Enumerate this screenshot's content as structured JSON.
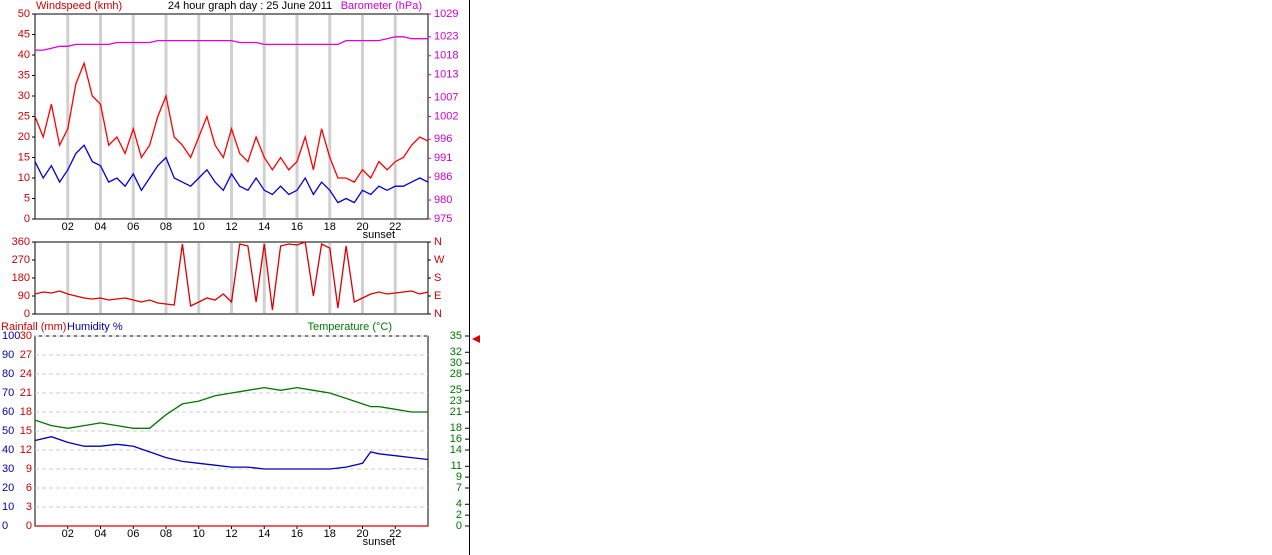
{
  "chart_data": [
    {
      "type": "line",
      "title": "24 hour graph day : 25 June 2011",
      "y_label": "Windspeed (kmh)",
      "y2_label": "Barometer (hPa)",
      "y_color": "#cc0000",
      "y2_color": "#cc00cc",
      "grid_x": true,
      "x": [
        0,
        0.5,
        1,
        1.5,
        2,
        2.5,
        3,
        3.5,
        4,
        4.5,
        5,
        5.5,
        6,
        6.5,
        7,
        7.5,
        8,
        8.5,
        9,
        9.5,
        10,
        10.5,
        11,
        11.5,
        12,
        12.5,
        13,
        13.5,
        14,
        14.5,
        15,
        15.5,
        16,
        16.5,
        17,
        17.5,
        18,
        18.5,
        19,
        19.5,
        20,
        20.5,
        21,
        21.5,
        22,
        22.5,
        23,
        23.5,
        24
      ],
      "xlim": [
        0,
        24
      ],
      "xticks": [
        {
          "value": 2,
          "label": "02"
        },
        {
          "value": 4,
          "label": "04"
        },
        {
          "value": 6,
          "label": "06"
        },
        {
          "value": 8,
          "label": "08"
        },
        10,
        12,
        14,
        16,
        18,
        20,
        22
      ],
      "annotation": {
        "text": "sunset",
        "x": 21
      },
      "ylim": [
        0,
        50
      ],
      "yticks": [
        0,
        5,
        10,
        15,
        20,
        25,
        30,
        35,
        40,
        45,
        50
      ],
      "y2lim": [
        975,
        1029
      ],
      "y2ticks": [
        975,
        980,
        986,
        991,
        996,
        1002,
        1007,
        1013,
        1018,
        1023,
        1029
      ],
      "series": [
        {
          "color": "#ff0000",
          "values": [
            25,
            20,
            28,
            18,
            22,
            33,
            38,
            30,
            28,
            18,
            20,
            16,
            22,
            15,
            18,
            25,
            30,
            20,
            18,
            15,
            20,
            25,
            18,
            15,
            22,
            16,
            14,
            20,
            15,
            12,
            15,
            12,
            14,
            20,
            12,
            22,
            15,
            10,
            10,
            9,
            12,
            10,
            14,
            12,
            14,
            15,
            18,
            20,
            19
          ]
        },
        {
          "color": "#0000dd",
          "values": [
            14,
            10,
            13,
            9,
            12,
            16,
            18,
            14,
            13,
            9,
            10,
            8,
            11,
            7,
            10,
            13,
            15,
            10,
            9,
            8,
            10,
            12,
            9,
            7,
            11,
            8,
            7,
            10,
            7,
            6,
            8,
            6,
            7,
            10,
            6,
            9,
            7,
            4,
            5,
            4,
            7,
            6,
            8,
            7,
            8,
            8,
            9,
            10,
            9
          ]
        },
        {
          "color": "#dd00dd",
          "axis": "y2",
          "values": [
            1019.5,
            1019.5,
            1020,
            1020.5,
            1020.5,
            1021,
            1021,
            1021,
            1021,
            1021,
            1021.5,
            1021.5,
            1021.5,
            1021.5,
            1021.5,
            1022,
            1022,
            1022,
            1022,
            1022,
            1022,
            1022,
            1022,
            1022,
            1022,
            1021.5,
            1021.5,
            1021.5,
            1021,
            1021,
            1021,
            1021,
            1021,
            1021,
            1021,
            1021,
            1021,
            1021,
            1022,
            1022,
            1022,
            1022,
            1022,
            1022.5,
            1023,
            1023,
            1022.5,
            1022.5,
            1022.5
          ]
        }
      ]
    },
    {
      "type": "line",
      "grid_x": true,
      "y_color": "#cc0000",
      "x": [
        0,
        0.5,
        1,
        1.5,
        2,
        2.5,
        3,
        3.5,
        4,
        4.5,
        5,
        5.5,
        6,
        6.5,
        7,
        7.5,
        8,
        8.5,
        9,
        9.5,
        10,
        10.5,
        11,
        11.5,
        12,
        12.5,
        13,
        13.5,
        14,
        14.5,
        15,
        15.5,
        16,
        16.5,
        17,
        17.5,
        18,
        18.5,
        19,
        19.5,
        20,
        20.5,
        21,
        21.5,
        22,
        22.5,
        23,
        23.5,
        24
      ],
      "xlim": [
        0,
        24
      ],
      "xticks": [
        2,
        4,
        6,
        8,
        10,
        12,
        14,
        16,
        18,
        20,
        22
      ],
      "ylim": [
        0,
        360
      ],
      "yticks": [
        0,
        90,
        180,
        270,
        360
      ],
      "y2lim": [
        0,
        360
      ],
      "y2ticks": [
        {
          "value": 0,
          "label": "N"
        },
        {
          "value": 90,
          "label": "E"
        },
        {
          "value": 180,
          "label": "S"
        },
        {
          "value": 270,
          "label": "W"
        },
        {
          "value": 360,
          "label": "N"
        }
      ],
      "series": [
        {
          "color": "#dd0000",
          "values": [
            100,
            110,
            105,
            115,
            100,
            90,
            80,
            75,
            80,
            70,
            75,
            80,
            70,
            60,
            70,
            55,
            50,
            45,
            350,
            40,
            60,
            80,
            70,
            100,
            60,
            350,
            340,
            60,
            350,
            20,
            340,
            350,
            345,
            360,
            90,
            350,
            330,
            30,
            340,
            60,
            80,
            100,
            110,
            100,
            105,
            110,
            115,
            100,
            110
          ]
        }
      ]
    },
    {
      "type": "line",
      "rain_label": "Rainfall (mm)",
      "y_label": "Humidity %",
      "y2_label": "Temperature (°C)",
      "rain_color": "#cc0000",
      "y_color": "#0000aa",
      "y2_color": "#007700",
      "grid_y": "dashed",
      "x": [
        0,
        1,
        2,
        3,
        4,
        5,
        6,
        7,
        8,
        9,
        10,
        11,
        12,
        13,
        14,
        15,
        16,
        17,
        18,
        19,
        20,
        20.5,
        21,
        22,
        23,
        24
      ],
      "xlim": [
        0,
        24
      ],
      "xticks": [
        {
          "value": 2,
          "label": "02"
        },
        {
          "value": 4,
          "label": "04"
        },
        {
          "value": 6,
          "label": "06"
        },
        {
          "value": 8,
          "label": "08"
        },
        10,
        12,
        14,
        16,
        18,
        20,
        22
      ],
      "annotation": {
        "text": "sunset",
        "x": 21
      },
      "ylim": [
        0,
        100
      ],
      "yticks": [
        0,
        10,
        20,
        30,
        40,
        50,
        60,
        70,
        80,
        90,
        100
      ],
      "rain_lim": [
        0,
        30
      ],
      "rain_ticks": [
        0,
        3,
        6,
        9,
        12,
        15,
        18,
        21,
        24,
        27,
        30
      ],
      "y2lim": [
        0,
        35
      ],
      "y2ticks": [
        0,
        2,
        4,
        7,
        9,
        11,
        14,
        16,
        18,
        21,
        23,
        25,
        28,
        30,
        32,
        35
      ],
      "series": [
        {
          "color": "#dd0000",
          "axis": "rain",
          "values": [
            0,
            0,
            0,
            0,
            0,
            0,
            0,
            0,
            0,
            0,
            0,
            0,
            0,
            0,
            0,
            0,
            0,
            0,
            0,
            0,
            0,
            0,
            0,
            0,
            0,
            0
          ]
        },
        {
          "color": "#0000bb",
          "values": [
            45,
            47,
            44,
            42,
            42,
            43,
            42,
            39,
            36,
            34,
            33,
            32,
            31,
            31,
            30,
            30,
            30,
            30,
            30,
            31,
            33,
            39,
            38,
            37,
            36,
            35
          ]
        },
        {
          "color": "#007700",
          "axis": "y2",
          "values": [
            19.5,
            18.5,
            18,
            18.5,
            19,
            18.5,
            18,
            18,
            20.5,
            22.5,
            23,
            24,
            24.5,
            25,
            25.5,
            25,
            25.5,
            25,
            24.5,
            23.5,
            22.5,
            22,
            22,
            21.5,
            21,
            21
          ]
        }
      ]
    }
  ]
}
